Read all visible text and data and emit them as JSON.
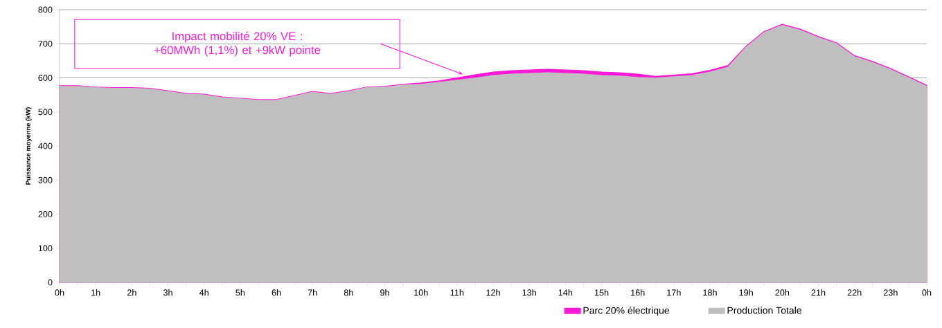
{
  "chart_data": {
    "type": "area",
    "ylabel": "Puissance moyenne  (kW)",
    "categories": [
      "0h",
      null,
      "1h",
      null,
      "2h",
      null,
      "3h",
      null,
      "4h",
      null,
      "5h",
      null,
      "6h",
      null,
      "7h",
      null,
      "8h",
      null,
      "9h",
      null,
      "10h",
      null,
      "11h",
      null,
      "12h",
      null,
      "13h",
      null,
      "14h",
      null,
      "15h",
      null,
      "16h",
      null,
      "17h",
      null,
      "18h",
      null,
      "19h",
      null,
      "20h",
      null,
      "21h",
      null,
      "22h",
      null,
      "23h",
      null,
      "0h"
    ],
    "ylim": [
      0,
      800
    ],
    "yticks": [
      0,
      100,
      200,
      300,
      400,
      500,
      600,
      700,
      800
    ],
    "grid": "y",
    "legend": "bottom",
    "series": [
      {
        "name": "Parc 20% électrique",
        "color": "#ff18d8",
        "values": [
          577,
          577,
          573,
          571,
          571,
          569,
          562,
          554,
          552,
          544,
          540,
          536,
          536,
          548,
          560,
          554,
          562,
          573,
          575,
          581,
          585,
          591,
          600,
          609,
          617,
          621,
          623,
          625,
          623,
          621,
          617,
          615,
          611,
          604,
          608,
          612,
          622,
          636,
          693,
          736,
          757,
          743,
          721,
          703,
          665,
          648,
          627,
          603,
          578
        ]
      },
      {
        "name": "Production Totale",
        "color": "#bfbfbf",
        "values": [
          575,
          575,
          571,
          569,
          569,
          567,
          560,
          552,
          550,
          542,
          538,
          534,
          534,
          546,
          558,
          552,
          560,
          571,
          573,
          579,
          581,
          587,
          593,
          599,
          607,
          611,
          613,
          615,
          613,
          611,
          607,
          605,
          601,
          599,
          603,
          607,
          617,
          631,
          690,
          733,
          754,
          740,
          718,
          700,
          662,
          645,
          624,
          600,
          575
        ]
      }
    ],
    "annotations": [
      "Impact mobilité 20% VE : +60MWh (1,1%) et +9kW pointe"
    ]
  }
}
